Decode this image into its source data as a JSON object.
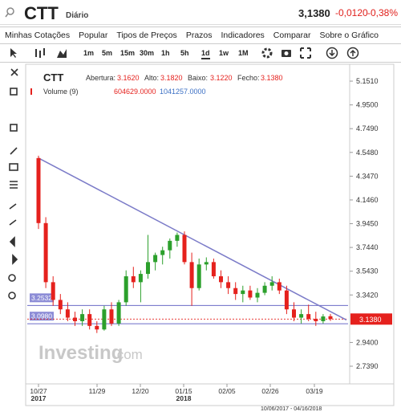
{
  "header": {
    "symbol": "CTT",
    "period": "Diário",
    "price": "3,1380",
    "change": "-0,0120",
    "change_pct": "-0,38%"
  },
  "menu": [
    "Minhas Cotações",
    "Popular",
    "Tipos de Preços",
    "Prazos",
    "Indicadores",
    "Comparar",
    "Sobre o Gráfico"
  ],
  "toolbar": {
    "timeframes": [
      "1m",
      "5m",
      "15m",
      "30m",
      "1h",
      "5h",
      "1d",
      "1w",
      "1M"
    ]
  },
  "legend": {
    "symbol": "CTT",
    "open_label": "Abertura:",
    "open": "3.1620",
    "high_label": "Alto:",
    "high": "3.1820",
    "low_label": "Baixo:",
    "low": "3.1220",
    "close_label": "Fecho:",
    "close": "3.1380",
    "volume_label": "Volume (9)",
    "volume_a": "604629.0000",
    "volume_b": "1041257.0000"
  },
  "watermark": {
    "brand": "Investing",
    "suffix": ".com"
  },
  "range": "10/06/2017 - 04/16/2018",
  "chart_data": {
    "type": "candlestick",
    "open": [
      4.5,
      3.95,
      3.45,
      3.3,
      3.22,
      3.15,
      3.12,
      3.18,
      3.08,
      3.05,
      3.22,
      3.1,
      3.28,
      3.5,
      3.45,
      3.52,
      3.62,
      3.68,
      3.72,
      3.8,
      3.85,
      3.62,
      3.4,
      3.6,
      3.62,
      3.5,
      3.45,
      3.4,
      3.35,
      3.38,
      3.32,
      3.36,
      3.42,
      3.45,
      3.38,
      3.22,
      3.15,
      3.18,
      3.14,
      3.12,
      3.162
    ],
    "high": [
      4.52,
      4.0,
      3.5,
      3.35,
      3.28,
      3.2,
      3.22,
      3.22,
      3.12,
      3.25,
      3.28,
      3.3,
      3.55,
      3.58,
      3.55,
      3.85,
      3.7,
      3.75,
      3.82,
      3.87,
      3.88,
      3.7,
      3.65,
      3.66,
      3.65,
      3.55,
      3.5,
      3.45,
      3.42,
      3.42,
      3.4,
      3.45,
      3.5,
      3.48,
      3.42,
      3.28,
      3.22,
      3.26,
      3.2,
      3.18,
      3.182
    ],
    "low": [
      3.9,
      3.4,
      3.25,
      3.18,
      3.12,
      3.08,
      3.08,
      3.05,
      3.02,
      3.04,
      3.08,
      3.08,
      3.25,
      3.4,
      3.28,
      3.48,
      3.55,
      3.6,
      3.65,
      3.75,
      3.6,
      3.25,
      3.38,
      3.55,
      3.48,
      3.4,
      3.35,
      3.3,
      3.28,
      3.3,
      3.28,
      3.34,
      3.38,
      3.35,
      3.18,
      3.12,
      3.1,
      3.12,
      3.08,
      3.1,
      3.122
    ],
    "close": [
      3.95,
      3.45,
      3.3,
      3.22,
      3.15,
      3.12,
      3.18,
      3.08,
      3.05,
      3.22,
      3.1,
      3.28,
      3.5,
      3.45,
      3.52,
      3.62,
      3.68,
      3.72,
      3.8,
      3.85,
      3.62,
      3.4,
      3.6,
      3.62,
      3.5,
      3.45,
      3.4,
      3.35,
      3.38,
      3.32,
      3.36,
      3.42,
      3.45,
      3.38,
      3.22,
      3.15,
      3.18,
      3.14,
      3.12,
      3.16,
      3.138
    ],
    "up_color": "#2ca02c",
    "down_color": "#e5211d",
    "ylim": [
      2.61,
      5.26
    ],
    "yticks": [
      {
        "value": 5.151,
        "label": "5.1510"
      },
      {
        "value": 4.95,
        "label": "4.9500"
      },
      {
        "value": 4.749,
        "label": "4.7490"
      },
      {
        "value": 4.548,
        "label": "4.5480"
      },
      {
        "value": 4.347,
        "label": "4.3470"
      },
      {
        "value": 4.146,
        "label": "4.1460"
      },
      {
        "value": 3.945,
        "label": "3.9450"
      },
      {
        "value": 3.744,
        "label": "3.7440"
      },
      {
        "value": 3.543,
        "label": "3.5430"
      },
      {
        "value": 3.342,
        "label": "3.3420"
      },
      {
        "value": 2.94,
        "label": "2.9400"
      },
      {
        "value": 2.739,
        "label": "2.7390"
      }
    ],
    "last_price": {
      "value": 3.138,
      "label": "3.1380"
    },
    "levels": [
      {
        "value": 3.2532,
        "label": "3.2532"
      },
      {
        "value": 3.098,
        "label": "3.0980"
      }
    ],
    "trendline": {
      "start": 4.5,
      "end": 3.13
    },
    "xticks": [
      "10/27",
      "11/29",
      "12/20",
      "01/15",
      "02/05",
      "02/26",
      "03/19"
    ],
    "years": [
      "2017",
      "2018"
    ]
  }
}
